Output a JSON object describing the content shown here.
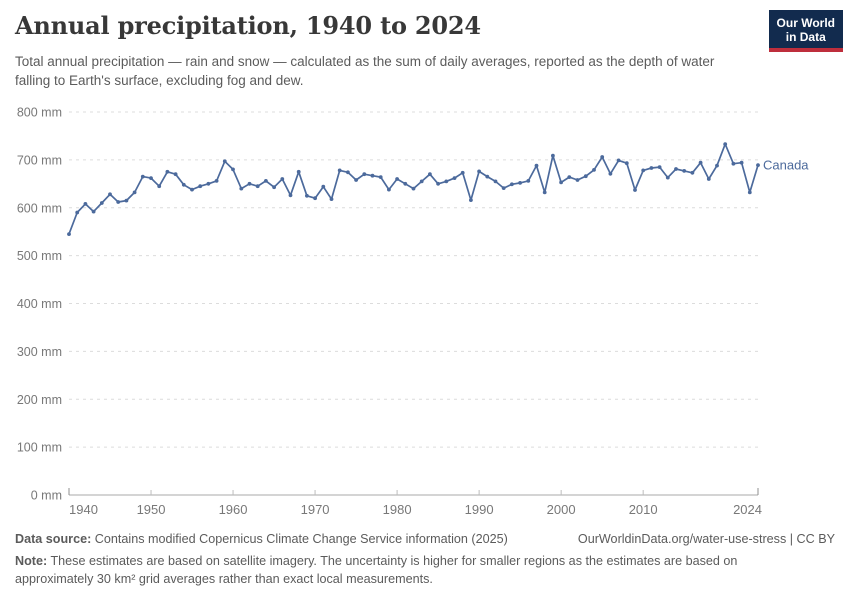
{
  "header": {
    "title": "Annual precipitation, 1940 to 2024",
    "subtitle": "Total annual precipitation — rain and snow — calculated as the sum of daily averages, reported as the depth of water falling to Earth's surface, excluding fog and dew.",
    "logo": {
      "line1": "Our World",
      "line2": "in Data",
      "bg_color": "#122B4E",
      "bar_color": "#BE2E3C"
    }
  },
  "chart_data": {
    "type": "line",
    "title": "Annual precipitation, 1940 to 2024",
    "xlabel": "",
    "ylabel": "",
    "unit": "mm",
    "x_start_year": 1940,
    "x_end_year": 2024,
    "ylim": [
      0,
      800
    ],
    "yticks": [
      0,
      100,
      200,
      300,
      400,
      500,
      600,
      700,
      800
    ],
    "ytick_suffix": " mm",
    "xticks": [
      1940,
      1950,
      1960,
      1970,
      1980,
      1990,
      2000,
      2010,
      2024
    ],
    "grid": "horizontal-dashed",
    "legend_position": "line-end-label",
    "line_color": "#4C6A9C",
    "grid_color": "#dcdcdc",
    "axis_color": "#a8a8a8",
    "tick_label_color": "#787878",
    "series": [
      {
        "name": "Canada",
        "values": [
          545,
          590,
          608,
          592,
          610,
          628,
          612,
          615,
          632,
          665,
          662,
          645,
          675,
          670,
          648,
          638,
          645,
          650,
          656,
          697,
          680,
          640,
          650,
          645,
          656,
          643,
          660,
          626,
          675,
          625,
          620,
          644,
          618,
          678,
          674,
          658,
          670,
          667,
          664,
          638,
          660,
          650,
          640,
          655,
          670,
          650,
          655,
          662,
          673,
          616,
          676,
          665,
          655,
          641,
          649,
          652,
          656,
          688,
          632,
          709,
          653,
          664,
          658,
          666,
          679,
          706,
          671,
          699,
          693,
          637,
          678,
          683,
          685,
          663,
          681,
          677,
          673,
          694,
          660,
          688,
          733,
          692,
          694,
          632,
          689
        ]
      }
    ]
  },
  "footer": {
    "datasource_label": "Data source:",
    "datasource_text": " Contains modified Copernicus Climate Change Service information (2025)",
    "link_text": "OurWorldinData.org/water-use-stress | CC BY",
    "note_label": "Note:",
    "note_text": " These estimates are based on satellite imagery. The uncertainty is higher for smaller regions as the estimates are based on approximately 30 km² grid averages rather than exact local measurements."
  }
}
